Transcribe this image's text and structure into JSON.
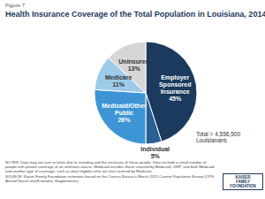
{
  "chart_data": {
    "type": "pie",
    "figure_label": "Figure 7",
    "title": "Health Insurance Coverage of the Total Population in Louisiana, 2014",
    "categories": [
      "Employer Sponsored Insurance",
      "Individual",
      "Medicaid/Other Public",
      "Medicare",
      "Uninsured"
    ],
    "values": [
      45,
      5,
      26,
      11,
      13
    ],
    "value_labels": [
      "45%",
      "5%",
      "26%",
      "11%",
      "13%"
    ],
    "colors": [
      "#1b3a5e",
      "#2a5f96",
      "#3e95d6",
      "#9dcbea",
      "#d6d6d6"
    ],
    "data_labels": true,
    "total_label": "Total = 4,556,500 Louisianans",
    "notes": "NOTES: Data may not sum to totals due to rounding and the exclusion of these people. Data exclude a small number of people with private coverage of an unknown source. Medicaid includes those covered by Medicaid, CHIP, and both Medicaid and another type of coverage, such as dual eligibles who are also covered by Medicare.",
    "source": "SOURCE: Kaiser Family Foundation estimates based on the Census Bureau's March 2015 Current Population Survey (CPS: Annual Social and Economic Supplements).",
    "logo": "KAISER FAMILY FOUNDATION"
  }
}
